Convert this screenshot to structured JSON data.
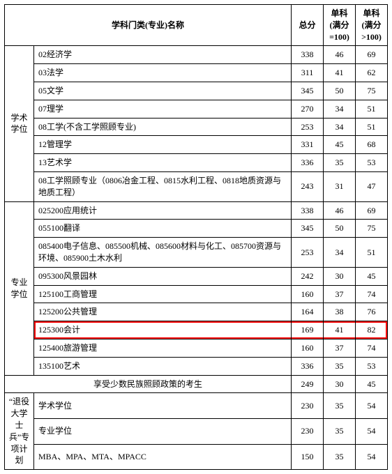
{
  "headers": {
    "name": "学科门类(专业)名称",
    "total": "总分",
    "s100": "单科(满分=100)",
    "sgt100": "单科(满分>100)"
  },
  "group1": {
    "label": "学术学位",
    "rows": [
      {
        "name": "02经济学",
        "total": 338,
        "s100": 46,
        "sgt100": 69
      },
      {
        "name": "03法学",
        "total": 311,
        "s100": 41,
        "sgt100": 62
      },
      {
        "name": "05文学",
        "total": 345,
        "s100": 50,
        "sgt100": 75
      },
      {
        "name": "07理学",
        "total": 270,
        "s100": 34,
        "sgt100": 51
      },
      {
        "name": "08工学(不含工学照顾专业)",
        "total": 253,
        "s100": 34,
        "sgt100": 51
      },
      {
        "name": "12管理学",
        "total": 331,
        "s100": 45,
        "sgt100": 68
      },
      {
        "name": "13艺术学",
        "total": 336,
        "s100": 35,
        "sgt100": 53
      },
      {
        "name": "08工学照顾专业（0806冶金工程、0815水利工程、0818地质资源与地质工程）",
        "total": 243,
        "s100": 31,
        "sgt100": 47
      }
    ]
  },
  "group2": {
    "label": "专业学位",
    "rows": [
      {
        "name": "025200应用统计",
        "total": 338,
        "s100": 46,
        "sgt100": 69
      },
      {
        "name": "055100翻译",
        "total": 345,
        "s100": 50,
        "sgt100": 75
      },
      {
        "name": "085400电子信息、085500机械、085600材料与化工、085700资源与环境、085900土木水利",
        "total": 253,
        "s100": 34,
        "sgt100": 51
      },
      {
        "name": "095300风景园林",
        "total": 242,
        "s100": 30,
        "sgt100": 45
      },
      {
        "name": "125100工商管理",
        "total": 160,
        "s100": 37,
        "sgt100": 74
      },
      {
        "name": "125200公共管理",
        "total": 164,
        "s100": 38,
        "sgt100": 76
      },
      {
        "name": "125300会计",
        "total": 169,
        "s100": 41,
        "sgt100": 82,
        "highlight": true
      },
      {
        "name": "125400旅游管理",
        "total": 160,
        "s100": 37,
        "sgt100": 74
      },
      {
        "name": "135100艺术",
        "total": 336,
        "s100": 35,
        "sgt100": 53
      }
    ]
  },
  "minority": {
    "label": "享受少数民族照顾政策的考生",
    "total": 249,
    "s100": 30,
    "sgt100": 45
  },
  "group3": {
    "label": "“退役大学士兵”专项计划",
    "rows": [
      {
        "name": "学术学位",
        "total": 230,
        "s100": 35,
        "sgt100": 54
      },
      {
        "name": "专业学位",
        "total": 230,
        "s100": 35,
        "sgt100": 54
      },
      {
        "name": "MBA、MPA、MTA、MPACC",
        "total": 150,
        "s100": 35,
        "sgt100": 54
      }
    ]
  }
}
